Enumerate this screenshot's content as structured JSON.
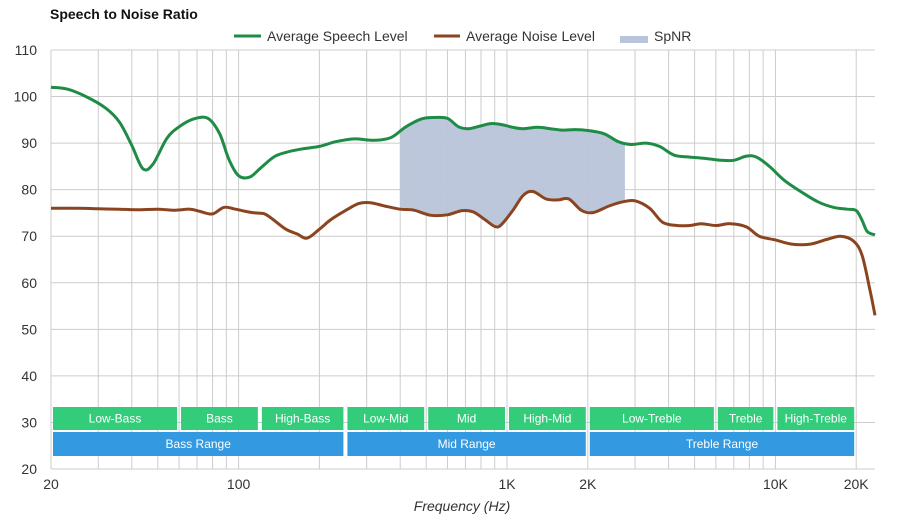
{
  "chart_data": {
    "type": "line",
    "title": "Speech to Noise Ratio",
    "xlabel": "Frequency (Hz)",
    "ylabel": "",
    "xscale": "log",
    "xlim": [
      20,
      23500
    ],
    "ylim": [
      20,
      110
    ],
    "grid": true,
    "legend_position": "top-center",
    "x_ticks": [
      {
        "value": 20,
        "label": "20"
      },
      {
        "value": 100,
        "label": "100"
      },
      {
        "value": 1000,
        "label": "1K"
      },
      {
        "value": 2000,
        "label": "2K"
      },
      {
        "value": 10000,
        "label": "10K"
      },
      {
        "value": 20000,
        "label": "20K"
      }
    ],
    "y_ticks": [
      20,
      30,
      40,
      50,
      60,
      70,
      80,
      90,
      100,
      110
    ],
    "legend": [
      {
        "name": "Average Speech Level",
        "color": "#1e8c45",
        "kind": "line"
      },
      {
        "name": "Average Noise Level",
        "color": "#8b4420",
        "kind": "line"
      },
      {
        "name": "SpNR",
        "color": "#b8c4d9",
        "kind": "area"
      }
    ],
    "series": [
      {
        "name": "Average Speech Level",
        "color": "#1e8c45",
        "x": [
          20,
          23,
          27,
          32,
          36,
          40,
          44,
          48,
          54,
          60,
          68,
          77,
          85,
          92,
          100,
          110,
          120,
          135,
          150,
          170,
          200,
          230,
          270,
          320,
          370,
          420,
          480,
          540,
          600,
          660,
          720,
          800,
          870,
          950,
          1050,
          1150,
          1300,
          1450,
          1600,
          1800,
          2000,
          2300,
          2600,
          2900,
          3300,
          3700,
          4200,
          4800,
          5500,
          6300,
          7000,
          7800,
          8500,
          9500,
          10800,
          12500,
          14500,
          16500,
          18500,
          20000,
          21000,
          22000,
          23500
        ],
        "y": [
          102,
          101.6,
          100,
          97.5,
          94.5,
          89.5,
          84.5,
          85.5,
          91,
          93.5,
          95.2,
          95.3,
          92,
          86.5,
          83,
          82.7,
          84.5,
          87,
          88,
          88.7,
          89.3,
          90.3,
          90.9,
          90.6,
          91.2,
          93.5,
          95.2,
          95.5,
          95.3,
          93.5,
          93.1,
          93.7,
          94.2,
          94,
          93.4,
          93.1,
          93.4,
          93.1,
          92.8,
          92.9,
          92.7,
          92,
          90.3,
          89.7,
          90,
          89.3,
          87.4,
          87,
          86.7,
          86.3,
          86.3,
          87.2,
          87,
          85,
          82,
          79.5,
          77.3,
          76.2,
          75.8,
          75.5,
          73.5,
          71,
          70.3
        ]
      },
      {
        "name": "Average Noise Level",
        "color": "#8b4420",
        "x": [
          20,
          25,
          30,
          36,
          42,
          50,
          58,
          66,
          72,
          80,
          88,
          96,
          105,
          115,
          125,
          135,
          150,
          165,
          180,
          200,
          220,
          250,
          280,
          310,
          350,
          400,
          450,
          520,
          600,
          680,
          750,
          830,
          900,
          950,
          1050,
          1150,
          1250,
          1400,
          1550,
          1700,
          1900,
          2100,
          2400,
          2700,
          3000,
          3400,
          3800,
          4300,
          4800,
          5300,
          6000,
          6800,
          7800,
          8700,
          10000,
          11500,
          13500,
          15500,
          17500,
          19500,
          21000,
          22500,
          23500
        ],
        "y": [
          76,
          76,
          75.9,
          75.8,
          75.7,
          75.8,
          75.6,
          75.8,
          75.3,
          74.8,
          76.2,
          75.9,
          75.4,
          75,
          74.8,
          73.5,
          71.5,
          70.5,
          69.6,
          71.5,
          73.5,
          75.5,
          77,
          77.2,
          76.5,
          75.8,
          75.6,
          74.5,
          74.6,
          75.5,
          75.2,
          73.5,
          72.1,
          72.4,
          75.5,
          78.8,
          79.6,
          78,
          77.8,
          78,
          75.5,
          75.1,
          76.5,
          77.4,
          77.6,
          76,
          73,
          72.3,
          72.3,
          72.7,
          72.3,
          72.7,
          72,
          70,
          69.2,
          68.3,
          68.3,
          69.3,
          70,
          69,
          66,
          58.5,
          53
        ]
      }
    ],
    "spnr_region": {
      "name": "SpNR",
      "color": "#b8c4d9",
      "x_from": 400,
      "x_to": 2750
    },
    "bands": {
      "detail": [
        {
          "label": "Low-Bass",
          "from": 20,
          "to": 60
        },
        {
          "label": "Bass",
          "from": 60,
          "to": 120
        },
        {
          "label": "High-Bass",
          "from": 120,
          "to": 250
        },
        {
          "label": "Low-Mid",
          "from": 250,
          "to": 500
        },
        {
          "label": "Mid",
          "from": 500,
          "to": 1000
        },
        {
          "label": "High-Mid",
          "from": 1000,
          "to": 2000
        },
        {
          "label": "Low-Treble",
          "from": 2000,
          "to": 6000
        },
        {
          "label": "Treble",
          "from": 6000,
          "to": 10000
        },
        {
          "label": "High-Treble",
          "from": 10000,
          "to": 20000
        }
      ],
      "range": [
        {
          "label": "Bass Range",
          "from": 20,
          "to": 250
        },
        {
          "label": "Mid Range",
          "from": 250,
          "to": 2000
        },
        {
          "label": "Treble Range",
          "from": 2000,
          "to": 20000
        }
      ],
      "detail_color": "#33cc7a",
      "range_color": "#3399e0"
    }
  }
}
